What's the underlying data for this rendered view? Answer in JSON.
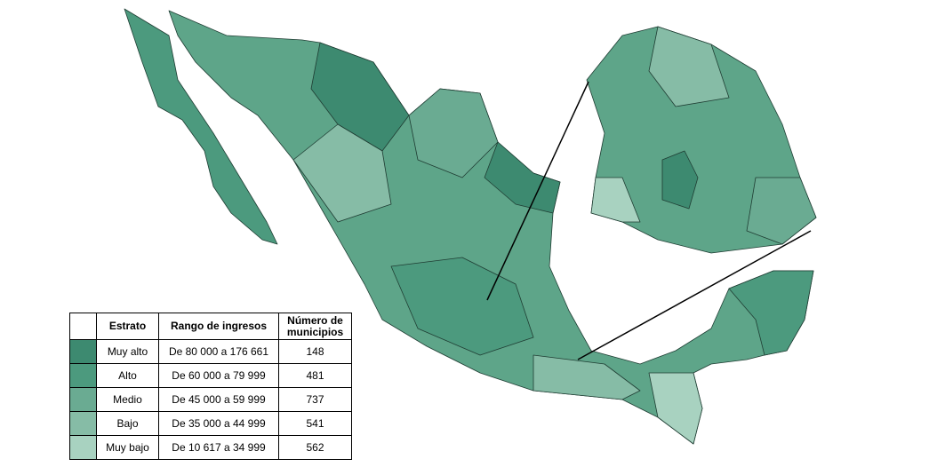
{
  "legend": {
    "header": [
      "Estrato",
      "Rango de ingresos",
      "Número de municipios"
    ],
    "rows": [
      {
        "color": "#3d8a70",
        "stratum": "Muy alto",
        "range": "De 80 000 a 176 661",
        "count": 148
      },
      {
        "color": "#4c9a7e",
        "stratum": "Alto",
        "range": "De 60 000 a 79 999",
        "count": 481
      },
      {
        "color": "#6aab92",
        "stratum": "Medio",
        "range": "De 45 000 a 59 999",
        "count": 737
      },
      {
        "color": "#86bca6",
        "stratum": "Bajo",
        "range": "De 35 000 a 44 999",
        "count": 541
      },
      {
        "color": "#a8d2c0",
        "stratum": "Muy bajo",
        "range": "De 10 617 a 34 999",
        "count": 562
      }
    ]
  }
}
